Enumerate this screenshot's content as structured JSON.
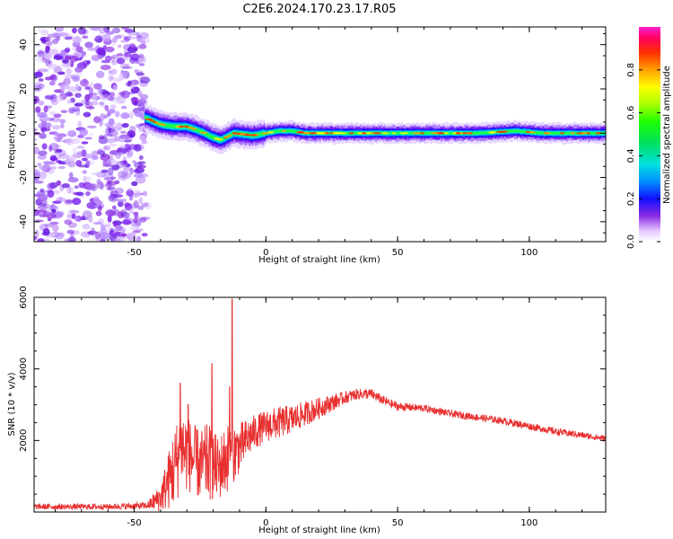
{
  "title": "C2E6.2024.170.23.17.R05",
  "chart_data": [
    {
      "type": "heatmap",
      "xlabel": "Height of straight line (km)",
      "ylabel": "Frequency (Hz)",
      "xlim": [
        -88,
        129
      ],
      "ylim": [
        -49,
        48
      ],
      "xticks": [
        "-50",
        "0",
        "50",
        "100"
      ],
      "xtick_values": [
        -50,
        0,
        50,
        100
      ],
      "yticks": [
        "40",
        "20",
        "0",
        "-20",
        "-40"
      ],
      "ytick_values": [
        40,
        20,
        0,
        -20,
        -40
      ],
      "colorbar": {
        "label": "Normalized spectral amplitude",
        "ticks": [
          "0.0",
          "0.2",
          "0.4",
          "0.6",
          "0.8"
        ],
        "tick_values": [
          0.0,
          0.2,
          0.4,
          0.6,
          0.8
        ],
        "range": [
          0,
          1
        ],
        "colormap": "gist_ncar-like (white→purple→blue→cyan→green→yellow→orange→red→magenta)"
      },
      "noise_region_x": [
        -88,
        -45
      ],
      "ridge": {
        "x": [
          -46,
          -40,
          -35,
          -30,
          -25,
          -20,
          -17,
          -12,
          -5,
          0,
          5,
          10,
          15,
          20,
          40,
          60,
          80,
          95,
          105,
          115,
          129
        ],
        "freq": [
          7,
          4,
          3,
          3,
          1,
          -2,
          -3,
          0,
          -1,
          0,
          1,
          1,
          0,
          0,
          0,
          0,
          0,
          1,
          0,
          0,
          0
        ]
      }
    },
    {
      "type": "line",
      "xlabel": "Height of straight line (km)",
      "ylabel": "SNR (10 * v/v)",
      "color": "#e83030",
      "xlim": [
        -88,
        129
      ],
      "ylim": [
        0,
        6000
      ],
      "xticks": [
        "-50",
        "0",
        "50",
        "100"
      ],
      "xtick_values": [
        -50,
        0,
        50,
        100
      ],
      "yticks": [
        "6000",
        "4000",
        "2000"
      ],
      "ytick_values": [
        6000,
        4000,
        2000
      ],
      "envelope": {
        "x": [
          -88,
          -60,
          -45,
          -40,
          -35,
          -32,
          -28,
          -25,
          -22,
          -18,
          -15,
          -13,
          -10,
          -5,
          0,
          5,
          10,
          20,
          30,
          35,
          40,
          45,
          50,
          60,
          70,
          80,
          90,
          100,
          110,
          120,
          129
        ],
        "y": [
          150,
          150,
          180,
          400,
          1200,
          1800,
          1500,
          1300,
          1400,
          1200,
          1500,
          1600,
          1800,
          2200,
          2400,
          2500,
          2600,
          2900,
          3200,
          3300,
          3300,
          3100,
          2950,
          2900,
          2750,
          2650,
          2550,
          2400,
          2250,
          2150,
          2050
        ],
        "amp": [
          80,
          80,
          100,
          400,
          1100,
          1200,
          1000,
          1000,
          1100,
          900,
          1000,
          900,
          700,
          500,
          450,
          450,
          400,
          300,
          180,
          150,
          150,
          130,
          120,
          100,
          100,
          100,
          100,
          100,
          100,
          90,
          90
        ]
      },
      "spikes": [
        {
          "x": -32.5,
          "y": 3600
        },
        {
          "x": -29.5,
          "y": 3000
        },
        {
          "x": -20.5,
          "y": 4150
        },
        {
          "x": -12.8,
          "y": 5950
        },
        {
          "x": -13.8,
          "y": 3500
        }
      ]
    }
  ]
}
